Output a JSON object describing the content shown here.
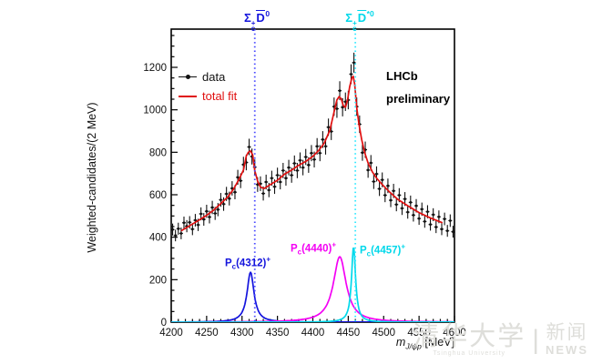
{
  "annotations": {
    "legend": {
      "data_label": "data",
      "fit_label": "total fit"
    },
    "experiment": {
      "line1": "LHCb",
      "line2": "preliminary"
    },
    "thresholds_labels": {
      "blue": {
        "sigma": "Σ",
        "sup": "+",
        "sub": "c",
        "meson": "D",
        "meson_sup": "0"
      },
      "cyan": {
        "sigma": "Σ",
        "sup": "+",
        "sub": "c",
        "meson": "D",
        "meson_sup": "*0"
      }
    },
    "peaks": {
      "pc4312": {
        "p": "P",
        "sub": "c",
        "text": "(4312)",
        "sup": "+"
      },
      "pc4440": {
        "p": "P",
        "sub": "c",
        "text": "(4440)",
        "sup": "+"
      },
      "pc4457": {
        "p": "P",
        "sub": "c",
        "text": "(4457)",
        "sup": "+"
      }
    }
  },
  "watermark": {
    "cn": "清华大学",
    "en": "Tsinghua University",
    "divider": "|",
    "cn2": "新闻",
    "en2": "NEWS"
  },
  "chart_data": {
    "type": "line",
    "title": "",
    "ylabel": "Weighted-candidates/(2 MeV)",
    "xlabel_parts": {
      "main": "m",
      "sub": "J/ψp",
      "units": " [MeV]"
    },
    "xlim": [
      4200,
      4600
    ],
    "ylim": [
      0,
      1380
    ],
    "x_ticks": [
      4200,
      4250,
      4300,
      4350,
      4400,
      4450,
      4500,
      4550,
      4600
    ],
    "x_minor_step": 10,
    "y_ticks": [
      0,
      200,
      400,
      600,
      800,
      1000,
      1200
    ],
    "y_minor_step": 50,
    "grid": false,
    "legend_position": "top-left",
    "colors": {
      "data": "#111111",
      "fit": "#e01010",
      "blue": "#1414dd",
      "blueDash": "#4848ff",
      "magenta": "#f400f4",
      "cyan": "#00d8ea",
      "cyanDash": "#30e8ff",
      "axis": "#000000",
      "watermark": "#dededa"
    },
    "thresholds": [
      {
        "name": "Sigma_c+ Dbar0 threshold",
        "mass": 4318,
        "color_key": "blueDash"
      },
      {
        "name": "Sigma_c+ Dbar*0 threshold",
        "mass": 4460,
        "color_key": "cyanDash"
      }
    ],
    "components": [
      {
        "name": "Pc(4312)+",
        "mass": 4312,
        "amplitude": 235,
        "fwhm": 12,
        "color_key": "blue"
      },
      {
        "name": "Pc(4440)+",
        "mass": 4438,
        "amplitude": 308,
        "fwhm": 22,
        "color_key": "magenta"
      },
      {
        "name": "Pc(4457)+",
        "mass": 4457.5,
        "amplitude": 355,
        "fwhm": 7,
        "color_key": "cyan"
      }
    ],
    "total_fit": [
      [
        4214,
        430
      ],
      [
        4220,
        442
      ],
      [
        4230,
        462
      ],
      [
        4240,
        482
      ],
      [
        4250,
        503
      ],
      [
        4260,
        528
      ],
      [
        4270,
        558
      ],
      [
        4280,
        590
      ],
      [
        4288,
        626
      ],
      [
        4296,
        674
      ],
      [
        4302,
        716
      ],
      [
        4306,
        782
      ],
      [
        4309,
        800
      ],
      [
        4312,
        806
      ],
      [
        4315,
        788
      ],
      [
        4318,
        714
      ],
      [
        4322,
        664
      ],
      [
        4326,
        636
      ],
      [
        4331,
        629
      ],
      [
        4340,
        648
      ],
      [
        4350,
        668
      ],
      [
        4360,
        697
      ],
      [
        4370,
        716
      ],
      [
        4380,
        739
      ],
      [
        4390,
        757
      ],
      [
        4400,
        781
      ],
      [
        4408,
        808
      ],
      [
        4416,
        842
      ],
      [
        4424,
        904
      ],
      [
        4430,
        990
      ],
      [
        4434,
        1046
      ],
      [
        4437,
        1062
      ],
      [
        4440,
        1052
      ],
      [
        4443,
        1020
      ],
      [
        4446,
        1012
      ],
      [
        4449,
        1046
      ],
      [
        4452,
        1108
      ],
      [
        4455,
        1150
      ],
      [
        4457,
        1158
      ],
      [
        4459,
        1122
      ],
      [
        4462,
        1010
      ],
      [
        4465,
        936
      ],
      [
        4469,
        860
      ],
      [
        4473,
        800
      ],
      [
        4478,
        750
      ],
      [
        4484,
        708
      ],
      [
        4490,
        678
      ],
      [
        4498,
        648
      ],
      [
        4508,
        614
      ],
      [
        4520,
        578
      ],
      [
        4535,
        546
      ],
      [
        4550,
        516
      ],
      [
        4565,
        492
      ],
      [
        4583,
        468
      ]
    ],
    "data_points": [
      [
        4202,
        436
      ],
      [
        4206,
        408
      ],
      [
        4210,
        440
      ],
      [
        4214,
        418
      ],
      [
        4218,
        468
      ],
      [
        4222,
        452
      ],
      [
        4226,
        470
      ],
      [
        4230,
        438
      ],
      [
        4234,
        480
      ],
      [
        4238,
        458
      ],
      [
        4242,
        510
      ],
      [
        4246,
        484
      ],
      [
        4250,
        522
      ],
      [
        4254,
        495
      ],
      [
        4258,
        540
      ],
      [
        4262,
        512
      ],
      [
        4266,
        530
      ],
      [
        4270,
        576
      ],
      [
        4274,
        556
      ],
      [
        4278,
        604
      ],
      [
        4282,
        582
      ],
      [
        4286,
        630
      ],
      [
        4290,
        612
      ],
      [
        4294,
        682
      ],
      [
        4298,
        666
      ],
      [
        4302,
        742
      ],
      [
        4306,
        752
      ],
      [
        4310,
        825
      ],
      [
        4314,
        780
      ],
      [
        4318,
        730
      ],
      [
        4322,
        648
      ],
      [
        4326,
        652
      ],
      [
        4330,
        606
      ],
      [
        4334,
        660
      ],
      [
        4338,
        622
      ],
      [
        4342,
        678
      ],
      [
        4346,
        638
      ],
      [
        4350,
        692
      ],
      [
        4354,
        660
      ],
      [
        4358,
        714
      ],
      [
        4362,
        678
      ],
      [
        4366,
        728
      ],
      [
        4370,
        692
      ],
      [
        4374,
        748
      ],
      [
        4378,
        714
      ],
      [
        4382,
        762
      ],
      [
        4386,
        728
      ],
      [
        4390,
        778
      ],
      [
        4394,
        740
      ],
      [
        4398,
        796
      ],
      [
        4402,
        766
      ],
      [
        4406,
        828
      ],
      [
        4410,
        796
      ],
      [
        4414,
        860
      ],
      [
        4418,
        828
      ],
      [
        4422,
        918
      ],
      [
        4426,
        898
      ],
      [
        4430,
        1015
      ],
      [
        4434,
        1005
      ],
      [
        4438,
        1090
      ],
      [
        4442,
        1012
      ],
      [
        4446,
        1038
      ],
      [
        4450,
        1046
      ],
      [
        4454,
        1168
      ],
      [
        4458,
        1222
      ],
      [
        4462,
        1015
      ],
      [
        4466,
        932
      ],
      [
        4470,
        798
      ],
      [
        4474,
        812
      ],
      [
        4478,
        716
      ],
      [
        4482,
        750
      ],
      [
        4486,
        662
      ],
      [
        4490,
        698
      ],
      [
        4494,
        628
      ],
      [
        4498,
        670
      ],
      [
        4502,
        598
      ],
      [
        4506,
        642
      ],
      [
        4510,
        574
      ],
      [
        4514,
        618
      ],
      [
        4518,
        554
      ],
      [
        4522,
        598
      ],
      [
        4526,
        536
      ],
      [
        4530,
        580
      ],
      [
        4534,
        518
      ],
      [
        4538,
        564
      ],
      [
        4542,
        504
      ],
      [
        4546,
        548
      ],
      [
        4550,
        488
      ],
      [
        4554,
        532
      ],
      [
        4558,
        474
      ],
      [
        4562,
        520
      ],
      [
        4566,
        460
      ],
      [
        4570,
        506
      ],
      [
        4574,
        448
      ],
      [
        4578,
        496
      ],
      [
        4582,
        438
      ],
      [
        4586,
        486
      ],
      [
        4590,
        430
      ],
      [
        4594,
        478
      ],
      [
        4598,
        426
      ]
    ]
  }
}
